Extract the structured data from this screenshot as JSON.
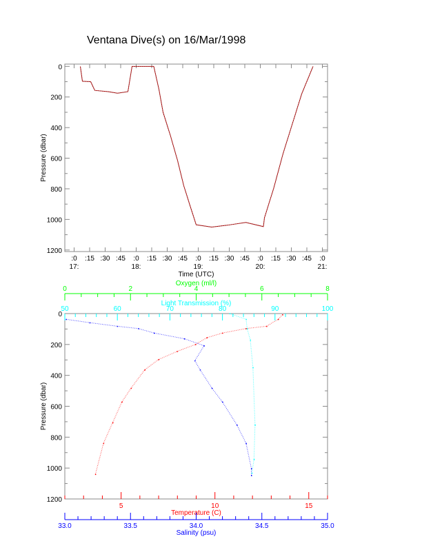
{
  "title": "Ventana Dive(s) on 16/Mar/1998",
  "chart_data": [
    {
      "type": "line",
      "title": "Ventana Dive(s) on 16/Mar/1998",
      "xlabel": "Time (UTC)",
      "ylabel": "Pressure (dbar)",
      "xlim": [
        "16:51",
        "21:05"
      ],
      "ylim": [
        1210,
        -15
      ],
      "y_inverted": true,
      "yticks": [
        0,
        200,
        400,
        600,
        800,
        1000,
        1200
      ],
      "xticks": [
        {
          "t": "17:00",
          "label": ":0",
          "hour": "17:"
        },
        {
          "t": "17:15",
          "label": ":15"
        },
        {
          "t": "17:30",
          "label": ":30"
        },
        {
          "t": "17:45",
          "label": ":45"
        },
        {
          "t": "18:00",
          "label": ":0",
          "hour": "18:"
        },
        {
          "t": "18:15",
          "label": ":15"
        },
        {
          "t": "18:30",
          "label": ":30"
        },
        {
          "t": "18:45",
          "label": ":45"
        },
        {
          "t": "19:00",
          "label": ":0",
          "hour": "19:"
        },
        {
          "t": "19:15",
          "label": ":15"
        },
        {
          "t": "19:30",
          "label": ":30"
        },
        {
          "t": "19:45",
          "label": ":45"
        },
        {
          "t": "20:00",
          "label": ":0",
          "hour": "20:"
        },
        {
          "t": "20:15",
          "label": ":15"
        },
        {
          "t": "20:30",
          "label": ":30"
        },
        {
          "t": "20:45",
          "label": ":45"
        },
        {
          "t": "21:00",
          "label": ":0",
          "hour": "21:"
        }
      ],
      "grid": false,
      "color": "#8b0000",
      "x": [
        "17:06",
        "17:08",
        "17:16",
        "17:20",
        "17:33",
        "17:42",
        "17:52",
        "17:56",
        "18:17",
        "18:22",
        "18:26",
        "18:33",
        "18:40",
        "18:46",
        "18:53",
        "18:58",
        "19:13",
        "19:28",
        "19:46",
        "20:03",
        "20:04",
        "20:13",
        "20:22",
        "20:31",
        "20:40",
        "20:51"
      ],
      "y": [
        0,
        97,
        100,
        157,
        165,
        175,
        165,
        0,
        0,
        150,
        300,
        450,
        615,
        780,
        930,
        1035,
        1050,
        1038,
        1020,
        1047,
        990,
        795,
        570,
        375,
        180,
        0
      ]
    },
    {
      "type": "scatter",
      "ylabel": "Pressure (dbar)",
      "ylim": [
        1200,
        0
      ],
      "y_inverted": true,
      "yticks": [
        0,
        200,
        400,
        600,
        800,
        1000,
        1200
      ],
      "grid": false,
      "axes": [
        {
          "name": "Temperature (C)",
          "position": "bottom",
          "color": "#ff0000",
          "lim": [
            2,
            16
          ],
          "ticks": [
            5,
            10,
            15
          ],
          "minor": 1
        },
        {
          "name": "Salinity (psu)",
          "position": "bottom-2",
          "color": "#0000ff",
          "lim": [
            33.0,
            35.0
          ],
          "ticks": [
            "33.0",
            "33.5",
            "34.0",
            "34.5",
            "35.0"
          ],
          "minor": 0.1
        },
        {
          "name": "Light Transmission (%)",
          "position": "top",
          "color": "#00ffff",
          "lim": [
            50,
            100
          ],
          "ticks": [
            50,
            60,
            70,
            80,
            90,
            100
          ],
          "minor": 2
        },
        {
          "name": "Oxygen (ml/l)",
          "position": "top-2",
          "color": "#00ff00",
          "lim": [
            0,
            8
          ],
          "ticks": [
            0,
            2,
            4,
            6,
            8
          ],
          "minor": 0.5
        }
      ],
      "series": [
        {
          "axis": 0,
          "color": "#ff0000",
          "x": [
            13.6,
            13.37,
            12.75,
            11.65,
            10.4,
            9.57,
            8.96,
            7.98,
            7.0,
            6.26,
            5.53,
            5.04,
            4.55,
            4.06,
            3.63
          ],
          "y": [
            7,
            37,
            82,
            97,
            126,
            156,
            200,
            245,
            297,
            364,
            483,
            572,
            706,
            840,
            1040
          ]
        },
        {
          "axis": 1,
          "color": "#0000ff",
          "x": [
            33.01,
            33.19,
            33.4,
            33.56,
            33.68,
            33.91,
            34.06,
            33.99,
            34.03,
            34.12,
            34.2,
            34.31,
            34.38,
            34.42,
            34.42
          ],
          "y": [
            37,
            59,
            82,
            97,
            126,
            163,
            208,
            305,
            364,
            483,
            572,
            721,
            840,
            1003,
            1048
          ]
        },
        {
          "axis": 2,
          "color": "#00ffff",
          "x": [
            81.4,
            84.5,
            84.7,
            85.3,
            85.8,
            86.2,
            86.0,
            85.6
          ],
          "y": [
            0,
            37,
            97,
            171,
            349,
            721,
            944,
            1033
          ]
        }
      ]
    }
  ]
}
